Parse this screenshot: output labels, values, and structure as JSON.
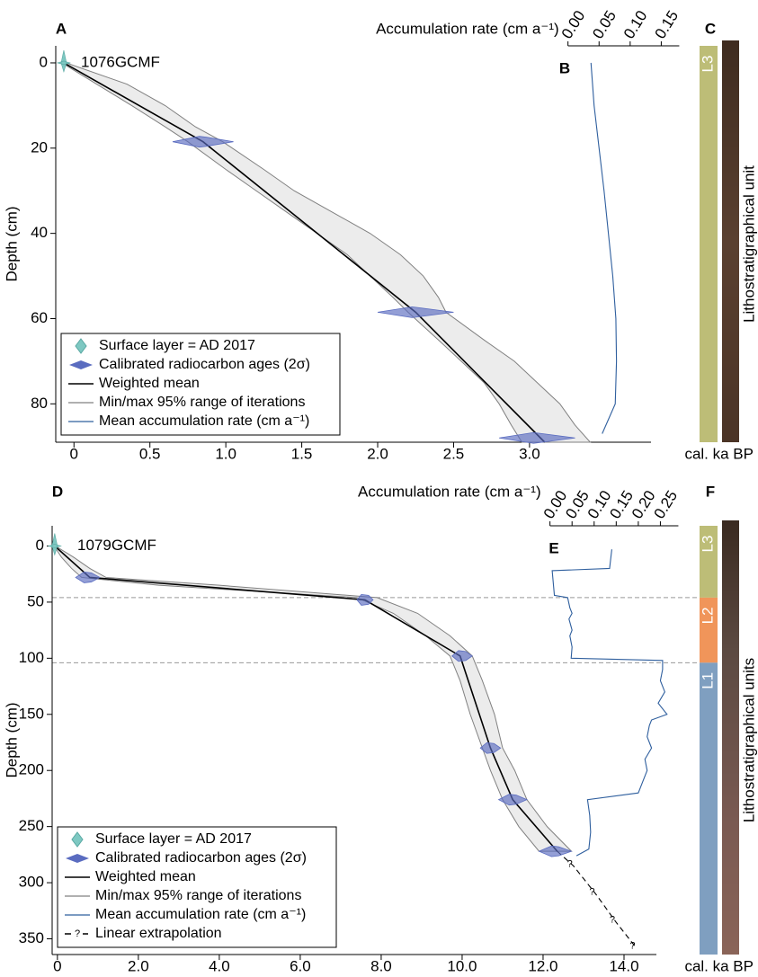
{
  "chart_data": [
    {
      "type": "age_depth",
      "core": "1076GCMF",
      "panel_labels": [
        "A",
        "B",
        "C"
      ],
      "xlabel": "cal. ka BP",
      "ylabel": "Depth (cm)",
      "xlim": [
        -0.12,
        3.8
      ],
      "xticks": [
        0,
        0.5,
        {
          "value": 1,
          "label": "1.0"
        },
        1.5,
        {
          "value": 2,
          "label": "2.0"
        },
        2.5,
        {
          "value": 3,
          "label": "3.0"
        }
      ],
      "ylim": [
        -4,
        89
      ],
      "yticks": [
        0,
        20,
        40,
        60,
        80
      ],
      "series": [
        {
          "name": "Surface layer = AD 2017",
          "kind": "surface",
          "color": "#7ec8c2",
          "x": [
            -0.067
          ],
          "y": [
            0
          ]
        },
        {
          "name": "Calibrated radiocarbon ages (2σ)",
          "kind": "dates",
          "color": "#5a6cc0",
          "x": [
            0.85,
            2.25,
            3.05
          ],
          "y": [
            18.5,
            58.5,
            88
          ],
          "err": [
            0.2,
            0.25,
            0.25
          ]
        },
        {
          "name": "Weighted mean",
          "kind": "line",
          "color": "#000000",
          "x": [
            -0.067,
            0.85,
            2.25,
            3.1
          ],
          "y": [
            0,
            18.5,
            58.5,
            89
          ]
        },
        {
          "name": "Min/max 95% range of iterations",
          "kind": "range",
          "color": "#808080",
          "y": [
            0,
            5,
            10,
            15,
            18.5,
            25,
            30,
            35,
            40,
            45,
            50,
            55,
            58.5,
            65,
            70,
            75,
            80,
            85,
            89
          ],
          "x_min": [
            -0.08,
            0.15,
            0.38,
            0.6,
            0.75,
            1.0,
            1.2,
            1.4,
            1.6,
            1.8,
            1.95,
            2.1,
            2.2,
            2.4,
            2.55,
            2.7,
            2.8,
            2.88,
            2.95
          ],
          "x_max": [
            -0.05,
            0.35,
            0.6,
            0.8,
            0.98,
            1.25,
            1.45,
            1.7,
            1.95,
            2.15,
            2.3,
            2.4,
            2.45,
            2.7,
            2.9,
            3.05,
            3.2,
            3.3,
            3.4
          ]
        },
        {
          "name": "Mean accumulation rate (cm a⁻¹)",
          "kind": "rate",
          "color": "#2f5f9e",
          "x": [
            0.037,
            0.042,
            0.05,
            0.058,
            0.065,
            0.072,
            0.077,
            0.078,
            0.076,
            0.055
          ],
          "y": [
            0,
            10,
            20,
            30,
            40,
            50,
            60,
            70,
            80,
            87
          ]
        }
      ],
      "rate_axis": {
        "label": "Accumulation rate (cm a⁻¹)",
        "xlim": [
          -0.04,
          0.2
        ],
        "xticks": [
          {
            "value": 0,
            "label": "0.00"
          },
          {
            "value": 0.05,
            "label": "0.05"
          },
          {
            "value": 0.1,
            "label": "0.10"
          },
          {
            "value": 0.15,
            "label": "0.15"
          }
        ]
      },
      "lithology": {
        "label": "Lithostratigraphical unit",
        "units": [
          {
            "label": "L3",
            "top": -4,
            "bottom": 89,
            "color": "#bdbd77"
          }
        ]
      }
    },
    {
      "type": "age_depth",
      "core": "1079GCMF",
      "panel_labels": [
        "D",
        "E",
        "F"
      ],
      "xlabel": "cal. ka BP",
      "ylabel": "Depth (cm)",
      "xlim": [
        -0.13,
        14.8
      ],
      "xticks": [
        0,
        {
          "value": 2,
          "label": "2.0"
        },
        {
          "value": 4,
          "label": "4.0"
        },
        {
          "value": 6,
          "label": "6.0"
        },
        {
          "value": 8,
          "label": "8.0"
        },
        {
          "value": 10,
          "label": "10.0"
        },
        {
          "value": 12,
          "label": "12.0"
        },
        {
          "value": 14,
          "label": "14.0"
        }
      ],
      "ylim": [
        -18,
        364
      ],
      "yticks": [
        0,
        50,
        100,
        150,
        200,
        250,
        300,
        350
      ],
      "series": [
        {
          "name": "Surface layer = AD 2017",
          "kind": "surface",
          "color": "#7ec8c2",
          "x": [
            -0.067
          ],
          "y": [
            0
          ]
        },
        {
          "name": "Calibrated radiocarbon ages (2σ)",
          "kind": "dates",
          "color": "#5a6cc0",
          "x": [
            0.75,
            7.6,
            10.0,
            10.7,
            11.25,
            12.3
          ],
          "y": [
            28,
            48,
            98,
            180,
            226,
            272
          ],
          "err": [
            0.3,
            0.2,
            0.25,
            0.25,
            0.35,
            0.4
          ]
        },
        {
          "name": "Weighted mean",
          "kind": "line",
          "color": "#000000",
          "x": [
            -0.067,
            0.8,
            7.6,
            9.95,
            10.7,
            11.25,
            12.35
          ],
          "y": [
            0,
            28,
            48,
            98,
            180,
            226,
            272
          ]
        },
        {
          "name": "Min/max 95% range of iterations",
          "kind": "range",
          "color": "#808080",
          "y": [
            0,
            10,
            20,
            28,
            35,
            46,
            60,
            80,
            98,
            120,
            150,
            180,
            200,
            226,
            250,
            272
          ],
          "x_min": [
            -0.08,
            0.1,
            0.35,
            0.6,
            2.5,
            7.4,
            8.3,
            9.1,
            9.7,
            9.95,
            10.2,
            10.5,
            10.7,
            11.0,
            11.4,
            11.9
          ],
          "x_max": [
            -0.05,
            0.4,
            0.8,
            1.2,
            4.0,
            7.9,
            8.9,
            9.7,
            10.25,
            10.5,
            10.8,
            11.0,
            11.3,
            11.6,
            12.1,
            12.7
          ]
        },
        {
          "name": "Mean accumulation rate (cm a⁻¹)",
          "kind": "rate",
          "color": "#2f5f9e",
          "x": [
            0.14,
            0.135,
            0.005,
            0.01,
            0.04,
            0.045,
            0.05,
            0.043,
            0.05,
            0.045,
            0.05,
            0.048,
            0.255,
            0.255,
            0.25,
            0.26,
            0.245,
            0.265,
            0.23,
            0.225,
            0.22,
            0.23,
            0.215,
            0.22,
            0.21,
            0.2,
            0.085,
            0.09,
            0.092,
            0.088,
            0.06
          ],
          "y": [
            3,
            20,
            22,
            44,
            46,
            55,
            60,
            65,
            75,
            80,
            90,
            100,
            102,
            110,
            120,
            130,
            140,
            150,
            155,
            160,
            170,
            180,
            190,
            200,
            210,
            220,
            226,
            240,
            255,
            270,
            276
          ]
        },
        {
          "name": "Linear extrapolation",
          "kind": "extrapolation",
          "color": "#000000",
          "marker": "?",
          "x": [
            12.35,
            12.75,
            13.3,
            13.8,
            14.3
          ],
          "y": [
            272,
            285,
            310,
            335,
            358
          ]
        }
      ],
      "rate_axis": {
        "label": "Accumulation rate (cm a⁻¹)",
        "xlim": [
          -0.04,
          0.3
        ],
        "xticks": [
          {
            "value": 0,
            "label": "0.00"
          },
          {
            "value": 0.05,
            "label": "0.05"
          },
          {
            "value": 0.1,
            "label": "0.10"
          },
          {
            "value": 0.15,
            "label": "0.15"
          },
          {
            "value": 0.2,
            "label": "0.20"
          },
          {
            "value": 0.25,
            "label": "0.25"
          }
        ]
      },
      "lithology": {
        "label": "Lithostratigraphical units",
        "units": [
          {
            "label": "L3",
            "top": -18,
            "bottom": 46,
            "color": "#bdbd77"
          },
          {
            "label": "L2",
            "top": 46,
            "bottom": 104,
            "color": "#f0955a"
          },
          {
            "label": "L1",
            "top": 104,
            "bottom": 364,
            "color": "#7f9fc0"
          }
        ]
      }
    }
  ]
}
